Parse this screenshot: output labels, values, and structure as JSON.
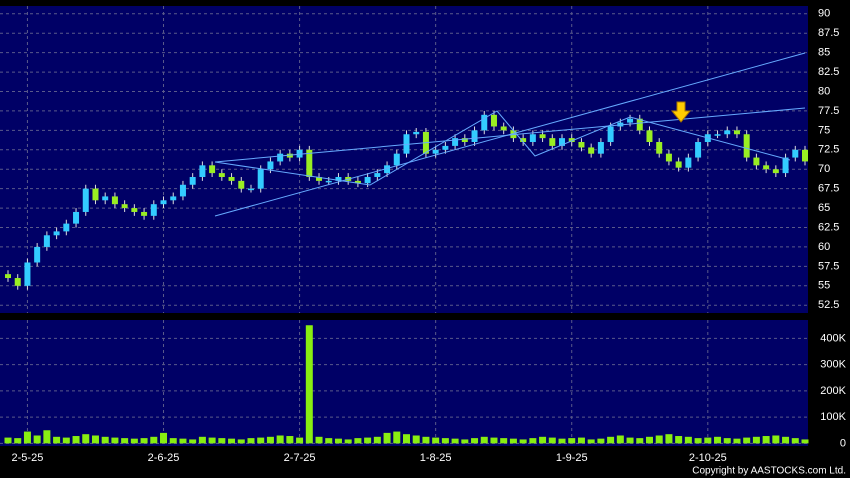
{
  "chart_data": {
    "type": "candlestick",
    "categories": [
      null,
      null,
      "2-5-25",
      null,
      null,
      null,
      null,
      null,
      null,
      null,
      null,
      null,
      null,
      null,
      null,
      null,
      "2-6-25",
      null,
      null,
      null,
      null,
      null,
      null,
      null,
      null,
      null,
      null,
      null,
      null,
      null,
      "2-7-25",
      null,
      null,
      null,
      null,
      null,
      null,
      null,
      null,
      null,
      null,
      null,
      null,
      null,
      "1-8-25",
      null,
      null,
      null,
      null,
      null,
      null,
      null,
      null,
      null,
      null,
      null,
      null,
      null,
      "1-9-25",
      null,
      null,
      null,
      null,
      null,
      null,
      null,
      null,
      null,
      null,
      null,
      null,
      null,
      "2-10-25",
      null,
      null,
      null,
      null,
      null,
      null,
      null,
      null,
      null,
      null
    ],
    "open": [
      56.5,
      56,
      55,
      58,
      60,
      61.5,
      62,
      63,
      64.5,
      67.5,
      66,
      66.5,
      65.5,
      65,
      64.5,
      64,
      65.5,
      66,
      66.5,
      68,
      69,
      70.5,
      69.5,
      69,
      68.5,
      67.5,
      67.5,
      70,
      71,
      72,
      71.5,
      72.5,
      69,
      68.5,
      68.5,
      69,
      68.5,
      68.2,
      69,
      69.5,
      70.5,
      72,
      74.5,
      74.8,
      72,
      72.5,
      73,
      74,
      73.5,
      75,
      77,
      75.5,
      75,
      74,
      73.5,
      74.5,
      74,
      73,
      74,
      73.5,
      72.8,
      72,
      73.5,
      75.5,
      76,
      76.5,
      75,
      73.5,
      72,
      71,
      70.2,
      71.5,
      73.5,
      74.5,
      74.5,
      75,
      74.5,
      71.5,
      70.5,
      70,
      69.5,
      71.5,
      72.5
    ],
    "high": [
      57,
      56.5,
      58.5,
      60.5,
      62,
      62.5,
      63.5,
      65,
      68,
      68,
      67,
      67,
      66,
      65.5,
      65,
      66,
      66.5,
      67,
      68.5,
      69.5,
      71,
      71,
      70,
      69.5,
      69,
      68,
      70.5,
      71.5,
      72.5,
      72.5,
      73,
      73,
      69.5,
      69,
      69.5,
      69.5,
      69,
      69.5,
      70,
      71,
      72.5,
      75,
      75.3,
      75.3,
      73,
      73.5,
      74.5,
      74.5,
      75.5,
      77.5,
      77.5,
      76,
      75.5,
      74.5,
      75,
      75,
      74.5,
      74.5,
      74.5,
      74,
      73.3,
      74,
      76,
      76.5,
      77,
      77,
      75.5,
      74,
      72.5,
      71.5,
      72,
      74,
      75,
      75,
      75.5,
      75.5,
      75,
      72,
      71,
      70.5,
      72,
      73,
      73
    ],
    "low": [
      55.5,
      54.5,
      54.5,
      57.5,
      59.5,
      61,
      61.5,
      62.5,
      64,
      65.5,
      65.5,
      65,
      64.5,
      64,
      63.5,
      63.5,
      65,
      65.5,
      66,
      67.5,
      68.5,
      69,
      68.5,
      68,
      67,
      67,
      67,
      69.5,
      70.5,
      71,
      71,
      68.5,
      68,
      68,
      68,
      68,
      67.7,
      67.7,
      68.5,
      69,
      70,
      71.5,
      74,
      71.5,
      71.5,
      72,
      72.5,
      73,
      73,
      74.5,
      75,
      74.5,
      73.5,
      73,
      73,
      73.5,
      72.5,
      72.5,
      73,
      72.3,
      71.5,
      71.5,
      73,
      75,
      75.5,
      74.5,
      73,
      71.5,
      70.5,
      69.7,
      69.7,
      71,
      73,
      74,
      74,
      74,
      71,
      70,
      69.5,
      69,
      69,
      71,
      70.5
    ],
    "close": [
      56,
      55,
      58,
      60,
      61.5,
      62,
      63,
      64.5,
      67.5,
      66,
      66.5,
      65.5,
      65,
      64.5,
      64,
      65.5,
      66,
      66.5,
      68,
      69,
      70.5,
      69.5,
      69,
      68.5,
      67.5,
      67.5,
      70,
      71,
      72,
      71.5,
      72.5,
      69,
      68.5,
      68.5,
      69,
      68.5,
      68.2,
      69,
      69.5,
      70.5,
      72,
      74.5,
      74.8,
      72,
      72.5,
      73,
      74,
      73.5,
      75,
      77,
      75.5,
      75,
      74,
      73.5,
      74.5,
      74,
      73,
      74,
      73.5,
      72.8,
      72,
      73.5,
      75.5,
      76,
      76.5,
      75,
      73.5,
      72,
      71,
      70.2,
      71.5,
      73.5,
      74.5,
      74.5,
      75,
      74.5,
      71.5,
      70.5,
      70,
      69.5,
      71.5,
      72.5,
      71
    ],
    "volume": [
      22000,
      20000,
      45000,
      30000,
      50000,
      25000,
      22000,
      28000,
      35000,
      30000,
      25000,
      22000,
      20000,
      18000,
      20000,
      25000,
      40000,
      20000,
      18000,
      15000,
      25000,
      22000,
      20000,
      18000,
      15000,
      20000,
      22000,
      25000,
      30000,
      28000,
      22000,
      450000,
      25000,
      20000,
      18000,
      15000,
      20000,
      22000,
      25000,
      40000,
      45000,
      35000,
      30000,
      25000,
      22000,
      20000,
      18000,
      15000,
      20000,
      25000,
      22000,
      20000,
      18000,
      15000,
      20000,
      25000,
      22000,
      18000,
      20000,
      22000,
      15000,
      18000,
      25000,
      30000,
      22000,
      20000,
      25000,
      30000,
      35000,
      28000,
      25000,
      20000,
      22000,
      25000,
      20000,
      18000,
      22000,
      25000,
      28000,
      30000,
      25000,
      20000,
      15000
    ],
    "up_color": "#33ccff",
    "down_color": "#99ee22",
    "volume_color": "#88ee11",
    "ylim": [
      51.5,
      91
    ],
    "yticks": [
      52.5,
      55,
      57.5,
      60,
      62.5,
      65,
      67.5,
      70,
      72.5,
      75,
      77.5,
      80,
      82.5,
      85,
      87.5,
      90
    ],
    "vlim": [
      -10000,
      470000
    ],
    "vticks": [
      0,
      {
        "value": 100000,
        "label": "100K"
      },
      {
        "value": 200000,
        "label": "200K"
      },
      {
        "value": 300000,
        "label": "300K"
      },
      {
        "value": 400000,
        "label": "400K"
      }
    ],
    "grid": true,
    "copyright": "Copyright by AASTOCKS.com Ltd."
  }
}
